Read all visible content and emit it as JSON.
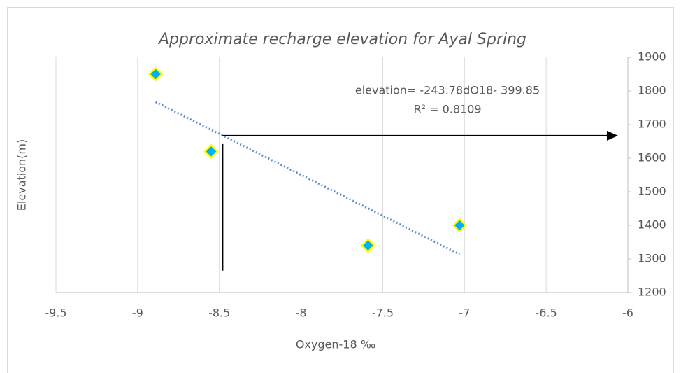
{
  "chart_data": {
    "type": "scatter",
    "title": "Approximate recharge elevation for Ayal Spring",
    "x_label": "Oxygen-18 ‰",
    "y_label": "Elevation(m)",
    "y_axis_side": "right",
    "grid": "x",
    "series": [
      {
        "name": "Ayal Spring",
        "color": "#00b0f0",
        "edge_color": "#ffff00",
        "marker": "diamond",
        "x": [
          -8.89,
          -8.55,
          -7.59,
          -7.03
        ],
        "values": [
          1850,
          1620,
          1340,
          1400
        ]
      }
    ],
    "trendline": {
      "slope": -243.78,
      "intercept": -399.85,
      "color": "#5b8fd0",
      "label": "elevation= -243.78dO18- 399.85",
      "r2_label": "R² = 0.8109"
    },
    "guide": {
      "x": -8.48,
      "y": 1667,
      "y_start": 1265,
      "x_end": -6.06,
      "color": "#000000"
    },
    "xlim": [
      -9.5,
      -6
    ],
    "xticks": [
      -9.5,
      -9,
      -8.5,
      -8,
      -7.5,
      -7,
      -6.5,
      -6
    ],
    "ylim": [
      1200,
      1900
    ],
    "yticks": [
      1200,
      1300,
      1400,
      1500,
      1600,
      1700,
      1800,
      1900
    ]
  }
}
